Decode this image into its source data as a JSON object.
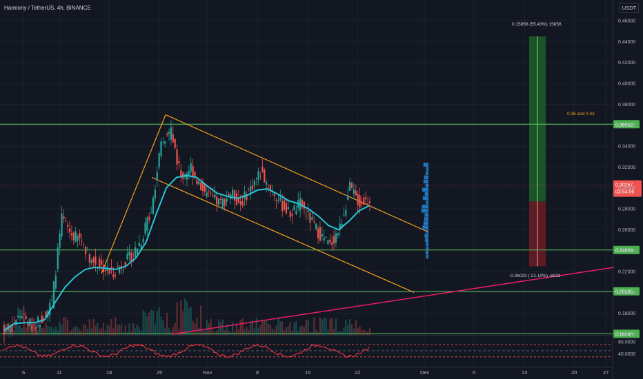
{
  "header": {
    "symbol_line": "Harmony / TetherUS, 4h, BINANCE",
    "currency": "USDT"
  },
  "colors": {
    "background": "#131722",
    "grid": "#1e222d",
    "up": "#26a69a",
    "down": "#ef5350",
    "ma": "#26c6da",
    "channel": "#f7a21b",
    "support": "#4caf50",
    "trend": "#e91e63",
    "rsi": "#f23645",
    "profit_zone": "#1f5f2a",
    "loss_zone": "#6b1d24",
    "volume_profile": "#2196f3"
  },
  "chart_data": {
    "type": "candlestick",
    "x_axis": {
      "ticks": [
        "6",
        "11",
        "18",
        "25",
        "Nov",
        "8",
        "15",
        "22",
        "Dec",
        "6",
        "13",
        "20",
        "27"
      ]
    },
    "y_axis": {
      "range": [
        0.15,
        0.47
      ],
      "ticks": [
        "0.46000",
        "0.44000",
        "0.42000",
        "0.40000",
        "0.38000",
        "0.36000",
        "0.34000",
        "0.32000",
        "0.30000",
        "0.28000",
        "0.26000",
        "0.24000",
        "0.22000",
        "0.20000",
        "0.18000",
        "0.16000"
      ]
    },
    "price_path": [
      [
        0.163,
        0.165
      ],
      [
        0.17,
        0.18
      ],
      [
        0.176,
        0.168
      ],
      [
        0.168,
        0.175
      ],
      [
        0.175,
        0.19
      ],
      [
        0.19,
        0.27
      ],
      [
        0.27,
        0.255
      ],
      [
        0.255,
        0.25
      ],
      [
        0.25,
        0.23
      ],
      [
        0.23,
        0.225
      ],
      [
        0.225,
        0.218
      ],
      [
        0.218,
        0.226
      ],
      [
        0.226,
        0.235
      ],
      [
        0.235,
        0.25
      ],
      [
        0.25,
        0.28
      ],
      [
        0.28,
        0.34
      ],
      [
        0.34,
        0.355
      ],
      [
        0.355,
        0.31
      ],
      [
        0.31,
        0.32
      ],
      [
        0.32,
        0.3
      ],
      [
        0.3,
        0.29
      ],
      [
        0.29,
        0.285
      ],
      [
        0.285,
        0.295
      ],
      [
        0.295,
        0.285
      ],
      [
        0.285,
        0.3
      ],
      [
        0.3,
        0.315
      ],
      [
        0.315,
        0.3
      ],
      [
        0.3,
        0.285
      ],
      [
        0.285,
        0.275
      ],
      [
        0.275,
        0.285
      ],
      [
        0.285,
        0.27
      ],
      [
        0.27,
        0.255
      ],
      [
        0.255,
        0.245
      ],
      [
        0.245,
        0.262
      ],
      [
        0.262,
        0.3
      ],
      [
        0.3,
        0.285
      ],
      [
        0.285,
        0.29
      ]
    ],
    "moving_average": [
      0.164,
      0.17,
      0.171,
      0.171,
      0.174,
      0.19,
      0.205,
      0.215,
      0.222,
      0.224,
      0.223,
      0.222,
      0.225,
      0.233,
      0.248,
      0.275,
      0.3,
      0.31,
      0.312,
      0.31,
      0.302,
      0.295,
      0.292,
      0.29,
      0.293,
      0.298,
      0.299,
      0.294,
      0.288,
      0.285,
      0.28,
      0.273,
      0.264,
      0.26,
      0.268,
      0.278,
      0.283
    ],
    "horizontal_levels": [
      {
        "price": 0.36092,
        "label": "0.36092"
      },
      {
        "price": 0.24064,
        "label": "0.24064"
      },
      {
        "price": 0.20105,
        "label": "0.20105"
      },
      {
        "price": 0.16045,
        "label": "0.16045"
      }
    ],
    "current_price": {
      "price": 0.30267,
      "label": "0.30267",
      "countdown": "03:54:06"
    },
    "annotations": {
      "zone_note": "0.36 and 0.43",
      "profit_label": "0.15856 (55.43%) 15856",
      "loss_label": "-0.06023 (-21.10%) -6023"
    },
    "position_tool": {
      "entry": 0.287,
      "target": 0.445,
      "stop": 0.225
    },
    "rsi_panel": {
      "ticks": [
        "80.0000",
        "40.0000"
      ],
      "upper": 70,
      "lower": 30
    }
  }
}
